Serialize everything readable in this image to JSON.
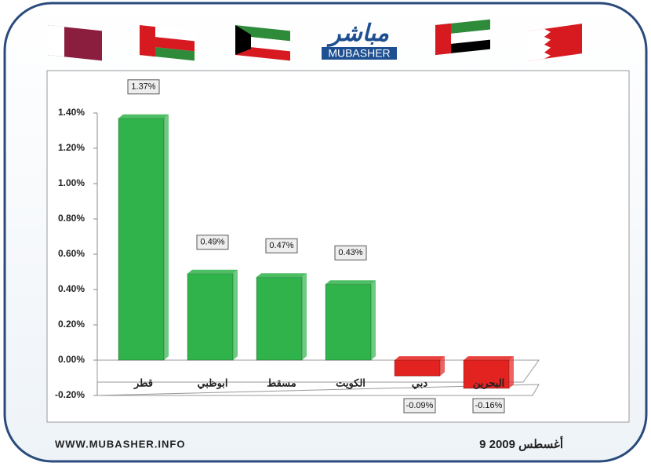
{
  "header": {
    "logo_arabic": "مباشر",
    "logo_latin": "MUBASHER"
  },
  "footer": {
    "website": "WWW.MUBASHER.INFO",
    "date": "9 أغسطس 2009"
  },
  "chart_data": {
    "type": "bar",
    "categories": [
      "قطر",
      "ابوظبي",
      "مسقط",
      "الكويت",
      "دبي",
      "البحرين"
    ],
    "values": [
      1.37,
      0.49,
      0.47,
      0.43,
      -0.09,
      -0.16
    ],
    "value_labels": [
      "1.37%",
      "0.49%",
      "0.47%",
      "0.43%",
      "-0.09%",
      "-0.16%"
    ],
    "colors": [
      "#2fb34a",
      "#2fb34a",
      "#2fb34a",
      "#2fb34a",
      "#e3231f",
      "#e3231f"
    ],
    "ylim": [
      -0.2,
      1.4
    ],
    "yticks": [
      {
        "value": -0.2,
        "label": "-0.20%"
      },
      {
        "value": 0,
        "label": "0.00%"
      },
      {
        "value": 0.2,
        "label": "0.20%"
      },
      {
        "value": 0.4,
        "label": "0.40%"
      },
      {
        "value": 0.6,
        "label": "0.60%"
      },
      {
        "value": 0.8,
        "label": "0.80%"
      },
      {
        "value": 1.0,
        "label": "1.00%"
      },
      {
        "value": 1.2,
        "label": "1.20%"
      },
      {
        "value": 1.4,
        "label": "1.40%"
      }
    ],
    "grid": false
  }
}
